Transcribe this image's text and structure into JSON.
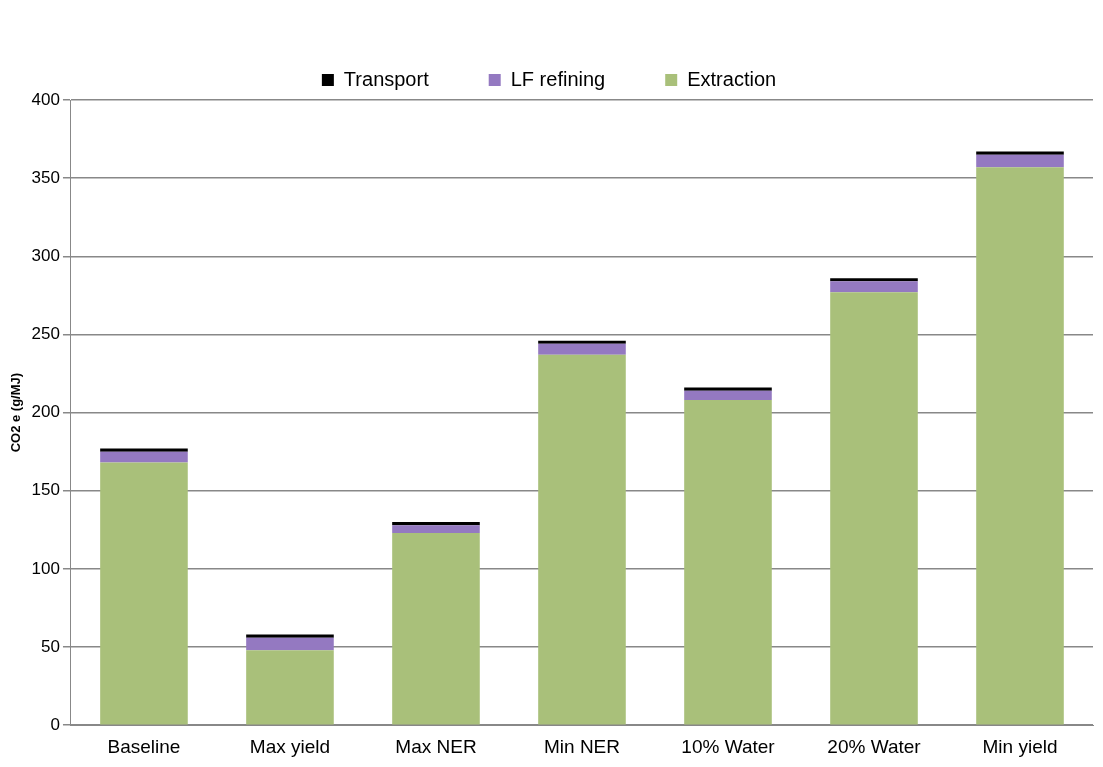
{
  "chart_data": {
    "type": "bar",
    "stacked": true,
    "ylabel": "CO2 e (g/MJ)",
    "categories": [
      "Baseline",
      "Max yield",
      "Max NER",
      "Min NER",
      "10% Water",
      "20% Water",
      "Min yield"
    ],
    "series": [
      {
        "name": "Extraction",
        "color": "#a9c07a",
        "values": [
          168,
          48,
          123,
          237,
          208,
          277,
          357
        ]
      },
      {
        "name": "LF refining",
        "color": "#9479c1",
        "values": [
          7,
          8,
          5,
          7,
          6,
          7,
          8
        ]
      },
      {
        "name": "Transport",
        "color": "#000000",
        "values": [
          2,
          2,
          2,
          2,
          2,
          2,
          2
        ]
      }
    ],
    "ylim": [
      0,
      400
    ],
    "yticks": [
      0,
      50,
      100,
      150,
      200,
      250,
      300,
      350,
      400
    ],
    "grid": "y",
    "legend": "top"
  }
}
